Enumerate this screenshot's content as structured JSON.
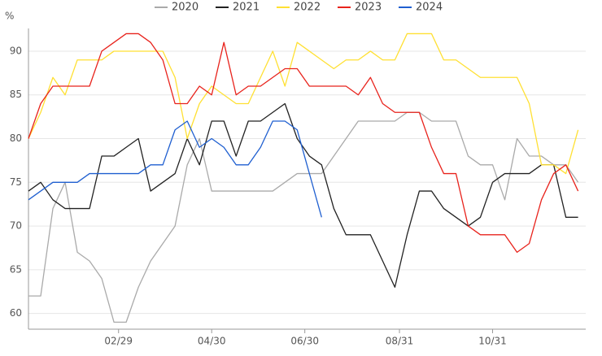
{
  "chart_data": {
    "type": "line",
    "y_axis_label": "%",
    "x": [
      1,
      9,
      17,
      25,
      33,
      41,
      49,
      57,
      65,
      73,
      81,
      89,
      97,
      105,
      113,
      121,
      129,
      137,
      145,
      153,
      161,
      169,
      177,
      185,
      193,
      201,
      209,
      217,
      225,
      233,
      241,
      249,
      257,
      265,
      273,
      281,
      289,
      297,
      305,
      313,
      321,
      329,
      337,
      345,
      353,
      361
    ],
    "xlim": [
      1,
      366
    ],
    "xticks": [
      {
        "value": 60,
        "label": "02/29"
      },
      {
        "value": 121,
        "label": "04/30"
      },
      {
        "value": 182,
        "label": "06/30"
      },
      {
        "value": 244,
        "label": "08/31"
      },
      {
        "value": 305,
        "label": "10/31"
      }
    ],
    "ylim": [
      58.2,
      92.6
    ],
    "yticks": [
      60,
      65,
      70,
      75,
      80,
      85,
      90
    ],
    "grid": true,
    "legend": "top",
    "series": [
      {
        "name": "2020",
        "color": "#aaaaaa",
        "values": [
          62,
          62,
          72,
          75,
          67,
          66,
          64,
          59,
          59,
          63,
          66,
          68,
          70,
          77,
          80,
          74,
          74,
          74,
          74,
          74,
          74,
          75,
          76,
          76,
          76,
          78,
          80,
          82,
          82,
          82,
          82,
          83,
          83,
          82,
          82,
          82,
          78,
          77,
          77,
          73,
          80,
          78,
          78,
          77,
          77,
          75
        ]
      },
      {
        "name": "2021",
        "color": "#222222",
        "values": [
          74,
          75,
          73,
          72,
          72,
          72,
          78,
          78,
          79,
          80,
          74,
          75,
          76,
          80,
          77,
          82,
          82,
          78,
          82,
          82,
          83,
          84,
          80,
          78,
          77,
          72,
          69,
          69,
          69,
          66,
          63,
          69,
          74,
          74,
          72,
          71,
          70,
          71,
          75,
          76,
          76,
          76,
          77,
          77,
          71,
          71
        ]
      },
      {
        "name": "2022",
        "color": "#ffe033",
        "values": [
          80,
          83,
          87,
          85,
          89,
          89,
          89,
          90,
          90,
          90,
          90,
          90,
          87,
          80,
          84,
          86,
          85,
          84,
          84,
          87,
          90,
          86,
          91,
          90,
          89,
          88,
          89,
          89,
          90,
          89,
          89,
          92,
          92,
          92,
          89,
          89,
          88,
          87,
          87,
          87,
          87,
          84,
          77,
          77,
          76,
          81
        ]
      },
      {
        "name": "2023",
        "color": "#e8231c",
        "values": [
          80,
          84,
          86,
          86,
          86,
          86,
          90,
          91,
          92,
          92,
          91,
          89,
          84,
          84,
          86,
          85,
          91,
          85,
          86,
          86,
          87,
          88,
          88,
          86,
          86,
          86,
          86,
          85,
          87,
          84,
          83,
          83,
          83,
          79,
          76,
          76,
          70,
          69,
          69,
          69,
          67,
          68,
          73,
          76,
          77,
          74
        ]
      },
      {
        "name": "2024",
        "color": "#1f5fd0",
        "values": [
          73,
          74,
          75,
          75,
          75,
          76,
          76,
          76,
          76,
          76,
          77,
          77,
          81,
          82,
          79,
          80,
          79,
          77,
          77,
          79,
          82,
          82,
          81,
          76,
          71,
          null,
          null,
          null,
          null,
          null,
          null,
          null,
          null,
          null,
          null,
          null,
          null,
          null,
          null,
          null,
          null,
          null,
          null,
          null,
          null,
          null
        ]
      }
    ]
  }
}
